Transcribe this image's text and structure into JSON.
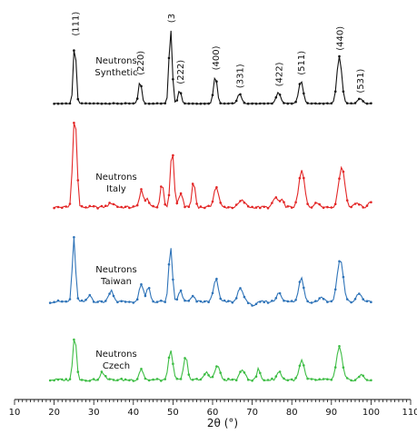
{
  "chart_data": {
    "type": "line",
    "xlabel": "2θ (°)",
    "xlim": [
      10,
      110
    ],
    "x_ticks": [
      "10",
      "20",
      "30",
      "40",
      "50",
      "60",
      "70",
      "80",
      "90",
      "100",
      "110"
    ],
    "peak_labels": [
      {
        "text": "(111)",
        "x": 25.2
      },
      {
        "text": "(3",
        "x": 49.4
      },
      {
        "text": "(220)",
        "x": 41.7
      },
      {
        "text": "(222)",
        "x": 51.7
      },
      {
        "text": "(400)",
        "x": 60.7
      },
      {
        "text": "(331)",
        "x": 66.8
      },
      {
        "text": "(422)",
        "x": 76.6
      },
      {
        "text": "(511)",
        "x": 82.3
      },
      {
        "text": "(440)",
        "x": 92.0
      },
      {
        "text": "(531)",
        "x": 97.2
      }
    ],
    "series": [
      {
        "label_lines": [
          "Neutrons",
          "Synthetic"
        ],
        "color": "#111111",
        "x_range": [
          20,
          100
        ],
        "baseline": 0,
        "peaks": [
          [
            25.2,
            76,
            0.35
          ],
          [
            41.7,
            28,
            0.4
          ],
          [
            49.4,
            92,
            0.4
          ],
          [
            51.7,
            17,
            0.4
          ],
          [
            60.7,
            34,
            0.45
          ],
          [
            66.8,
            12,
            0.5
          ],
          [
            76.6,
            14,
            0.55
          ],
          [
            82.3,
            28,
            0.55
          ],
          [
            92.0,
            58,
            0.6
          ],
          [
            97.2,
            6,
            0.6
          ]
        ]
      },
      {
        "label_lines": [
          "Neutrons",
          "Italy"
        ],
        "color": "#e32626",
        "x_range": [
          20,
          100
        ],
        "baseline": 2,
        "peaks": [
          [
            25.0,
            92,
            0.4
          ],
          [
            25.6,
            55,
            0.35
          ],
          [
            34.5,
            5,
            0.8
          ],
          [
            42.0,
            22,
            0.45
          ],
          [
            43.5,
            12,
            0.4
          ],
          [
            47.2,
            30,
            0.4
          ],
          [
            49.8,
            70,
            0.45
          ],
          [
            52.0,
            18,
            0.45
          ],
          [
            55.2,
            32,
            0.4
          ],
          [
            60.9,
            25,
            0.6
          ],
          [
            67.4,
            8,
            0.8
          ],
          [
            75.9,
            12,
            0.6
          ],
          [
            77.5,
            8,
            0.5
          ],
          [
            82.5,
            45,
            0.7
          ],
          [
            86.5,
            5,
            0.8
          ],
          [
            92.6,
            50,
            0.75
          ],
          [
            96.5,
            6,
            0.6
          ],
          [
            99.7,
            8,
            0.4
          ]
        ]
      },
      {
        "label_lines": [
          "Neutrons",
          "Taiwan"
        ],
        "color": "#2e73b8",
        "x_range": [
          19,
          100
        ],
        "baseline": 3,
        "peaks": [
          [
            25.0,
            78,
            0.4
          ],
          [
            29.0,
            8,
            0.5
          ],
          [
            34.4,
            14,
            0.6
          ],
          [
            42.0,
            22,
            0.5
          ],
          [
            43.8,
            18,
            0.45
          ],
          [
            49.4,
            66,
            0.45
          ],
          [
            51.9,
            14,
            0.45
          ],
          [
            55.0,
            6,
            0.5
          ],
          [
            60.8,
            28,
            0.6
          ],
          [
            67.0,
            18,
            0.6
          ],
          [
            70.5,
            -6,
            0.6
          ],
          [
            76.8,
            12,
            0.6
          ],
          [
            82.4,
            30,
            0.6
          ],
          [
            87.5,
            6,
            0.6
          ],
          [
            92.2,
            52,
            0.75
          ],
          [
            97.0,
            10,
            0.6
          ]
        ]
      },
      {
        "label_lines": [
          "Neutrons",
          "Czech"
        ],
        "color": "#3dbd44",
        "x_range": [
          19,
          100
        ],
        "baseline": 4,
        "peaks": [
          [
            25.2,
            54,
            0.45
          ],
          [
            32.2,
            9,
            0.6
          ],
          [
            42.0,
            14,
            0.5
          ],
          [
            49.4,
            38,
            0.5
          ],
          [
            53.2,
            28,
            0.5
          ],
          [
            58.5,
            10,
            0.6
          ],
          [
            61.2,
            18,
            0.6
          ],
          [
            67.6,
            12,
            0.7
          ],
          [
            71.6,
            14,
            0.4
          ],
          [
            76.8,
            10,
            0.6
          ],
          [
            82.5,
            24,
            0.6
          ],
          [
            92.0,
            40,
            0.7
          ],
          [
            97.5,
            6,
            0.6
          ]
        ]
      }
    ],
    "grid": false,
    "legend": "none"
  }
}
